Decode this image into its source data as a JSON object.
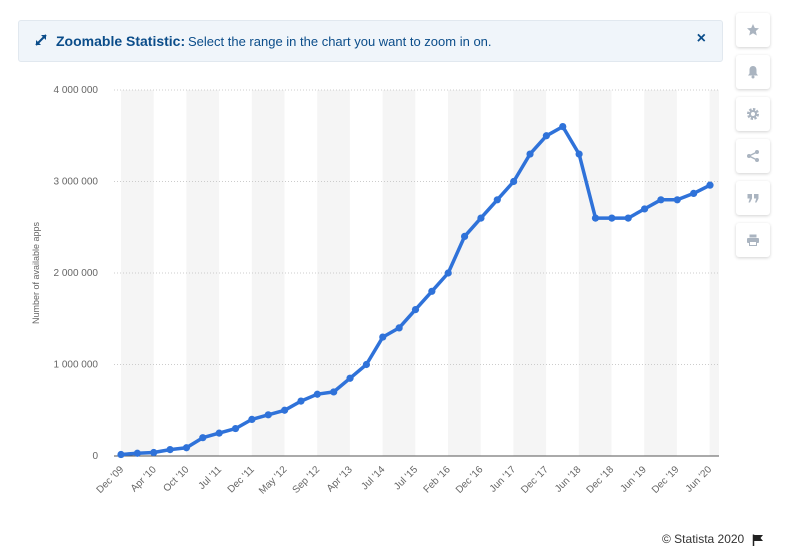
{
  "banner": {
    "title": "Zoomable Statistic:",
    "text": "Select the range in the chart you want to zoom in on.",
    "close_label": "×"
  },
  "sidebar": {
    "icons": [
      "star-icon",
      "bell-icon",
      "gear-icon",
      "share-icon",
      "quote-icon",
      "print-icon"
    ]
  },
  "credit": "© Statista 2020",
  "colors": {
    "line": "#2f72d9",
    "band": "#f5f5f5",
    "grid": "#cccccc",
    "banner_text": "#0b4d8a"
  },
  "chart_data": {
    "type": "line",
    "ylabel": "Number of available apps",
    "xlabel": "",
    "ylim": [
      0,
      4000000
    ],
    "yticks": [
      0,
      1000000,
      2000000,
      3000000,
      4000000
    ],
    "ytick_labels": [
      "0",
      "1 000 000",
      "2 000 000",
      "3 000 000",
      "4 000 000"
    ],
    "xtick_labels": [
      "Dec '09",
      "Apr '10",
      "Oct '10",
      "Jul '11",
      "Dec '11",
      "May '12",
      "Sep '12",
      "Apr '13",
      "Jul '14",
      "Jul '15",
      "Feb '16",
      "Dec '16",
      "Jun '17",
      "Dec '17",
      "Jun '18",
      "Dec '18",
      "Jun '19",
      "Dec '19",
      "Jun '20"
    ],
    "grid": true,
    "legend": "none",
    "series": [
      {
        "values": [
          16000,
          30000,
          38000,
          70000,
          90000,
          200000,
          250000,
          300000,
          400000,
          450000,
          500000,
          600000,
          675000,
          700000,
          850000,
          1000000,
          1300000,
          1400000,
          1600000,
          1800000,
          2000000,
          2400000,
          2600000,
          2800000,
          3000000,
          3300000,
          3500000,
          3600000,
          3300000,
          2600000,
          2600000,
          2600000,
          2700000,
          2800000,
          2800000,
          2870000,
          2960000
        ]
      }
    ]
  }
}
